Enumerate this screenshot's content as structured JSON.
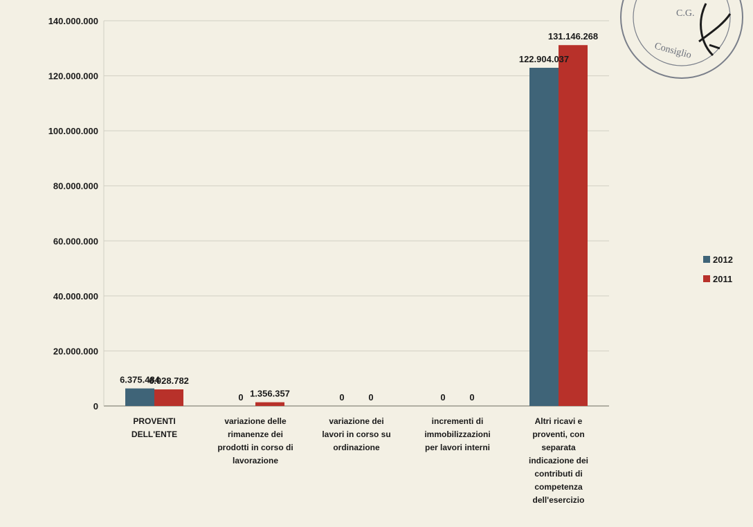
{
  "chart_data": {
    "type": "bar",
    "title": "",
    "xlabel": "",
    "ylabel": "",
    "ylim": [
      0,
      140000000
    ],
    "yticks": [
      0,
      20000000,
      40000000,
      60000000,
      80000000,
      100000000,
      120000000,
      140000000
    ],
    "ytick_labels": [
      "0",
      "20.000.000",
      "40.000.000",
      "60.000.000",
      "80.000.000",
      "100.000.000",
      "120.000.000",
      "140.000.000"
    ],
    "grid": true,
    "legend": "right",
    "categories": [
      [
        "PROVENTI",
        "DELL'ENTE"
      ],
      [
        "variazione delle",
        "rimanenze dei",
        "prodotti in corso di",
        "lavorazione"
      ],
      [
        "variazione dei",
        "lavori in corso su",
        "ordinazione"
      ],
      [
        "incrementi di",
        "immobilizzazioni",
        "per lavori interni"
      ],
      [
        "Altri ricavi e",
        "proventi, con",
        "separata",
        "indicazione dei",
        "contributi di",
        "competenza",
        "dell'esercizio"
      ]
    ],
    "series": [
      {
        "name": "2012",
        "color": "#3f6478",
        "values": [
          6375484,
          0,
          0,
          0,
          122904037
        ],
        "labels": [
          "6.375.484",
          "0",
          "0",
          "0",
          "122.904.037"
        ]
      },
      {
        "name": "2011",
        "color": "#b8312a",
        "values": [
          6028782,
          1356357,
          0,
          0,
          131146268
        ],
        "labels": [
          "6.028.782",
          "1.356.357",
          "0",
          "0",
          "131.146.268"
        ]
      }
    ]
  },
  "stamp": {
    "text": "Consiglio",
    "text2": "C.G.",
    "color": "#6a6f7a"
  }
}
